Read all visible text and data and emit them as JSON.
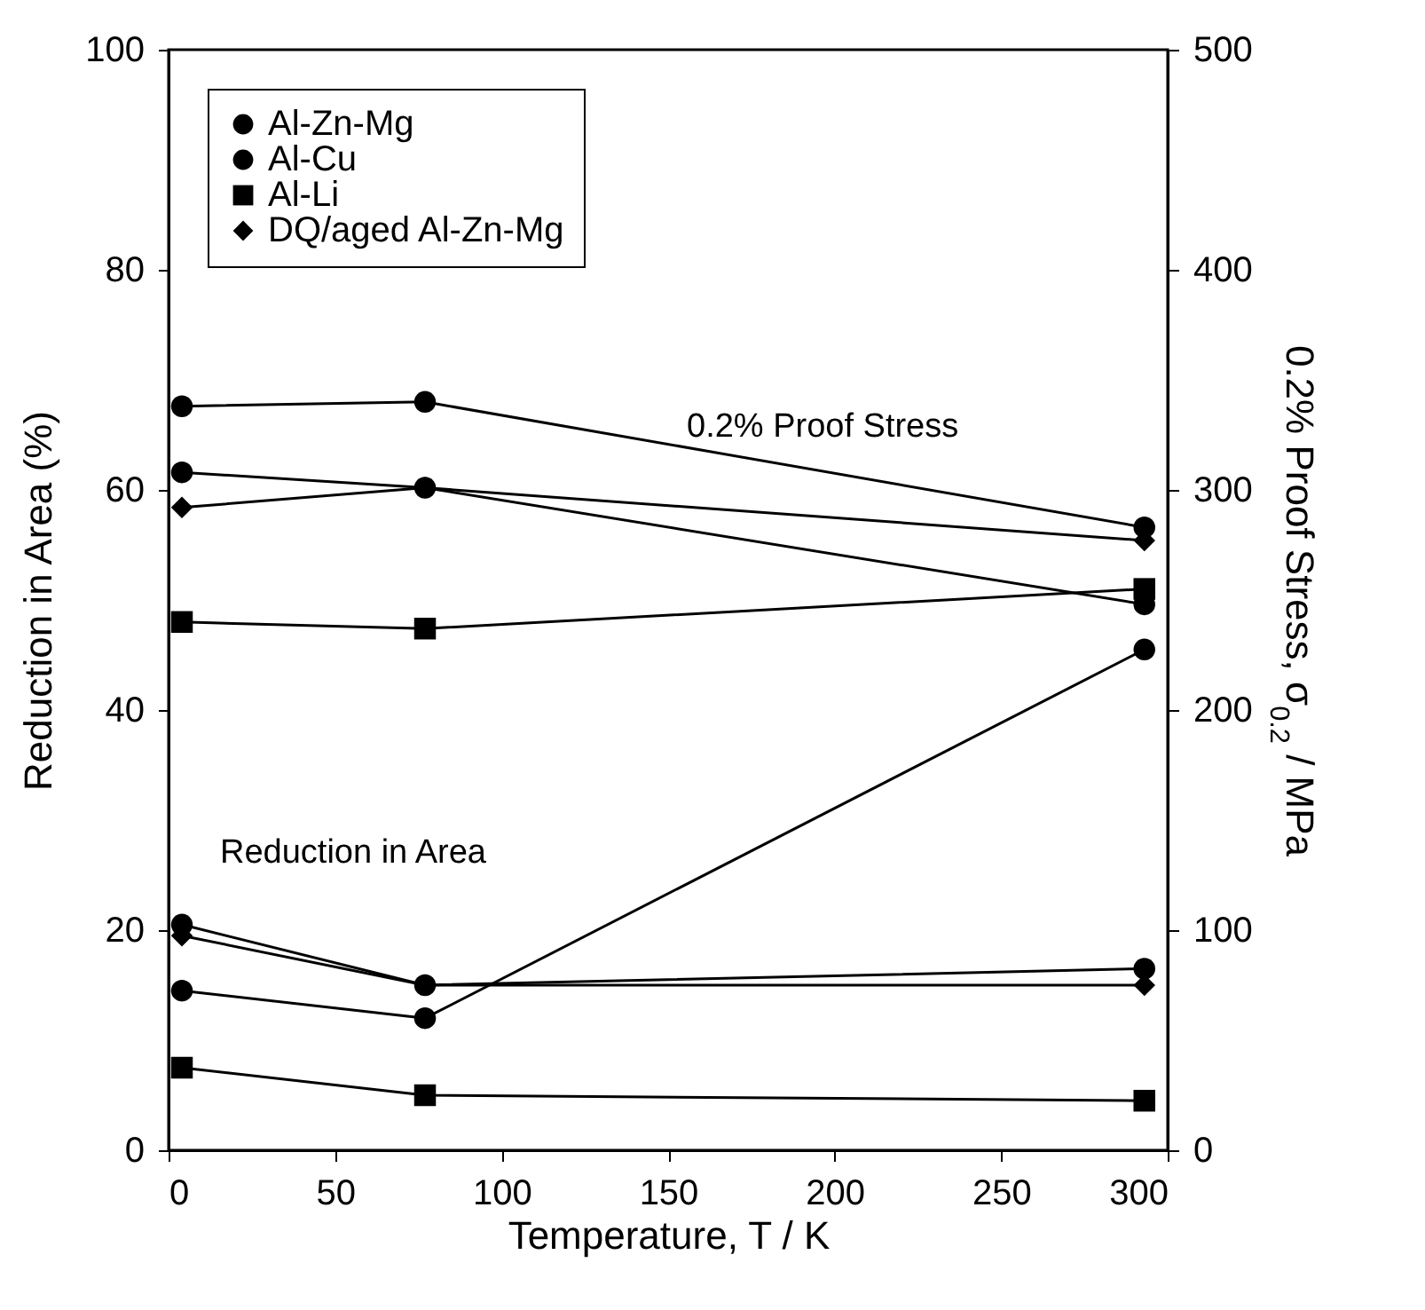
{
  "chart_data": {
    "type": "line",
    "xlabel": "Temperature, T / K",
    "ylabel": "Reduction in Area (%)",
    "y2label": "0.2% Proof Stress,  σ$_{0.2}$ / MPa",
    "x": [
      4,
      77,
      293
    ],
    "xlim": [
      0,
      300
    ],
    "xticks": [
      0,
      50,
      100,
      150,
      200,
      250,
      300
    ],
    "ylim": [
      0,
      100
    ],
    "yticks": [
      0,
      20,
      40,
      60,
      80,
      100
    ],
    "y2lim": [
      0,
      500
    ],
    "y2ticks": [
      0,
      100,
      200,
      300,
      400,
      500
    ],
    "grid": false,
    "legend": "top left",
    "line_style": "solid",
    "series": [
      {
        "name": "Al-Zn-Mg",
        "color": "#000000",
        "marker": "circle",
        "values": [
          14.5,
          12,
          45.5
        ]
      },
      {
        "name": "Al-Cu",
        "color": "#000000",
        "marker": "circle",
        "values": [
          20.5,
          15,
          16.5
        ]
      },
      {
        "name": "Al-Li",
        "color": "#000000",
        "marker": "square",
        "values": [
          7.5,
          5,
          4.5
        ]
      },
      {
        "name": "DQ/aged Al-Zn-Mg",
        "color": "#000000",
        "marker": "diamond",
        "values": [
          19.5,
          15,
          15
        ]
      },
      {
        "color": "#000000",
        "marker": "circle",
        "axis": "y2",
        "values": [
          338,
          340,
          283
        ]
      },
      {
        "color": "#000000",
        "marker": "circle",
        "axis": "y2",
        "values": [
          308,
          301,
          248
        ]
      },
      {
        "color": "#000000",
        "marker": "square",
        "axis": "y2",
        "values": [
          240,
          237,
          255
        ]
      },
      {
        "color": "#000000",
        "marker": "diamond",
        "axis": "y2",
        "values": [
          292,
          301,
          277
        ]
      }
    ],
    "annotations": [
      "0.2% Proof Stress",
      "Reduction in Area"
    ]
  }
}
